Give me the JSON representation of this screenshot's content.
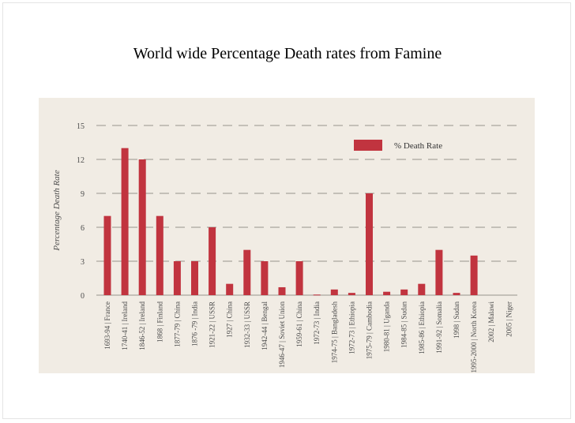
{
  "slide": {
    "title": "World wide Percentage Death rates from Famine"
  },
  "colors": {
    "plot_background": "#f1ece4",
    "bar": "#c1343f",
    "grid": "#aaa59d",
    "axis_text": "#4a4a4a"
  },
  "chart_data": {
    "type": "bar",
    "title": "World wide Percentage Death rates from Famine",
    "xlabel": "",
    "ylabel": "Percentage Death Rate",
    "ylim": [
      0,
      15
    ],
    "yticks": [
      0,
      3,
      6,
      9,
      12,
      15
    ],
    "grid": true,
    "legend_position": "top-right",
    "categories": [
      "1693-94 | France",
      "1740-41 | Ireland",
      "1846-52 | Ireland",
      "1868 | Finland",
      "1877-79 | China",
      "1876 -79 | India",
      "1921-22 | USSR",
      "1927 | China",
      "1932-33 | USSR",
      "1942-44 | Bengal",
      "1946-47 | Soviet Union",
      "1959-61 | China",
      "1972-73 | India",
      "1974-75 | Bangladesh",
      "1972-73 | Ethiopia",
      "1975-79 | Cambodia",
      "1980-81 | Uganda",
      "1984-85 | Sudan",
      "1985-86 | Ethiopia",
      "1991-92 | Somalia",
      "1998 | Sudan",
      "1995-2000 | North Korea",
      "2002 | Malawi",
      "2005 | Niger"
    ],
    "series": [
      {
        "name": "% Death Rate",
        "values": [
          7,
          13,
          12,
          7,
          3,
          3,
          6,
          1,
          4,
          3,
          0.7,
          3,
          0.05,
          0.5,
          0.2,
          9,
          0.3,
          0.5,
          1,
          4,
          0.2,
          3.5,
          0,
          0
        ]
      }
    ]
  }
}
